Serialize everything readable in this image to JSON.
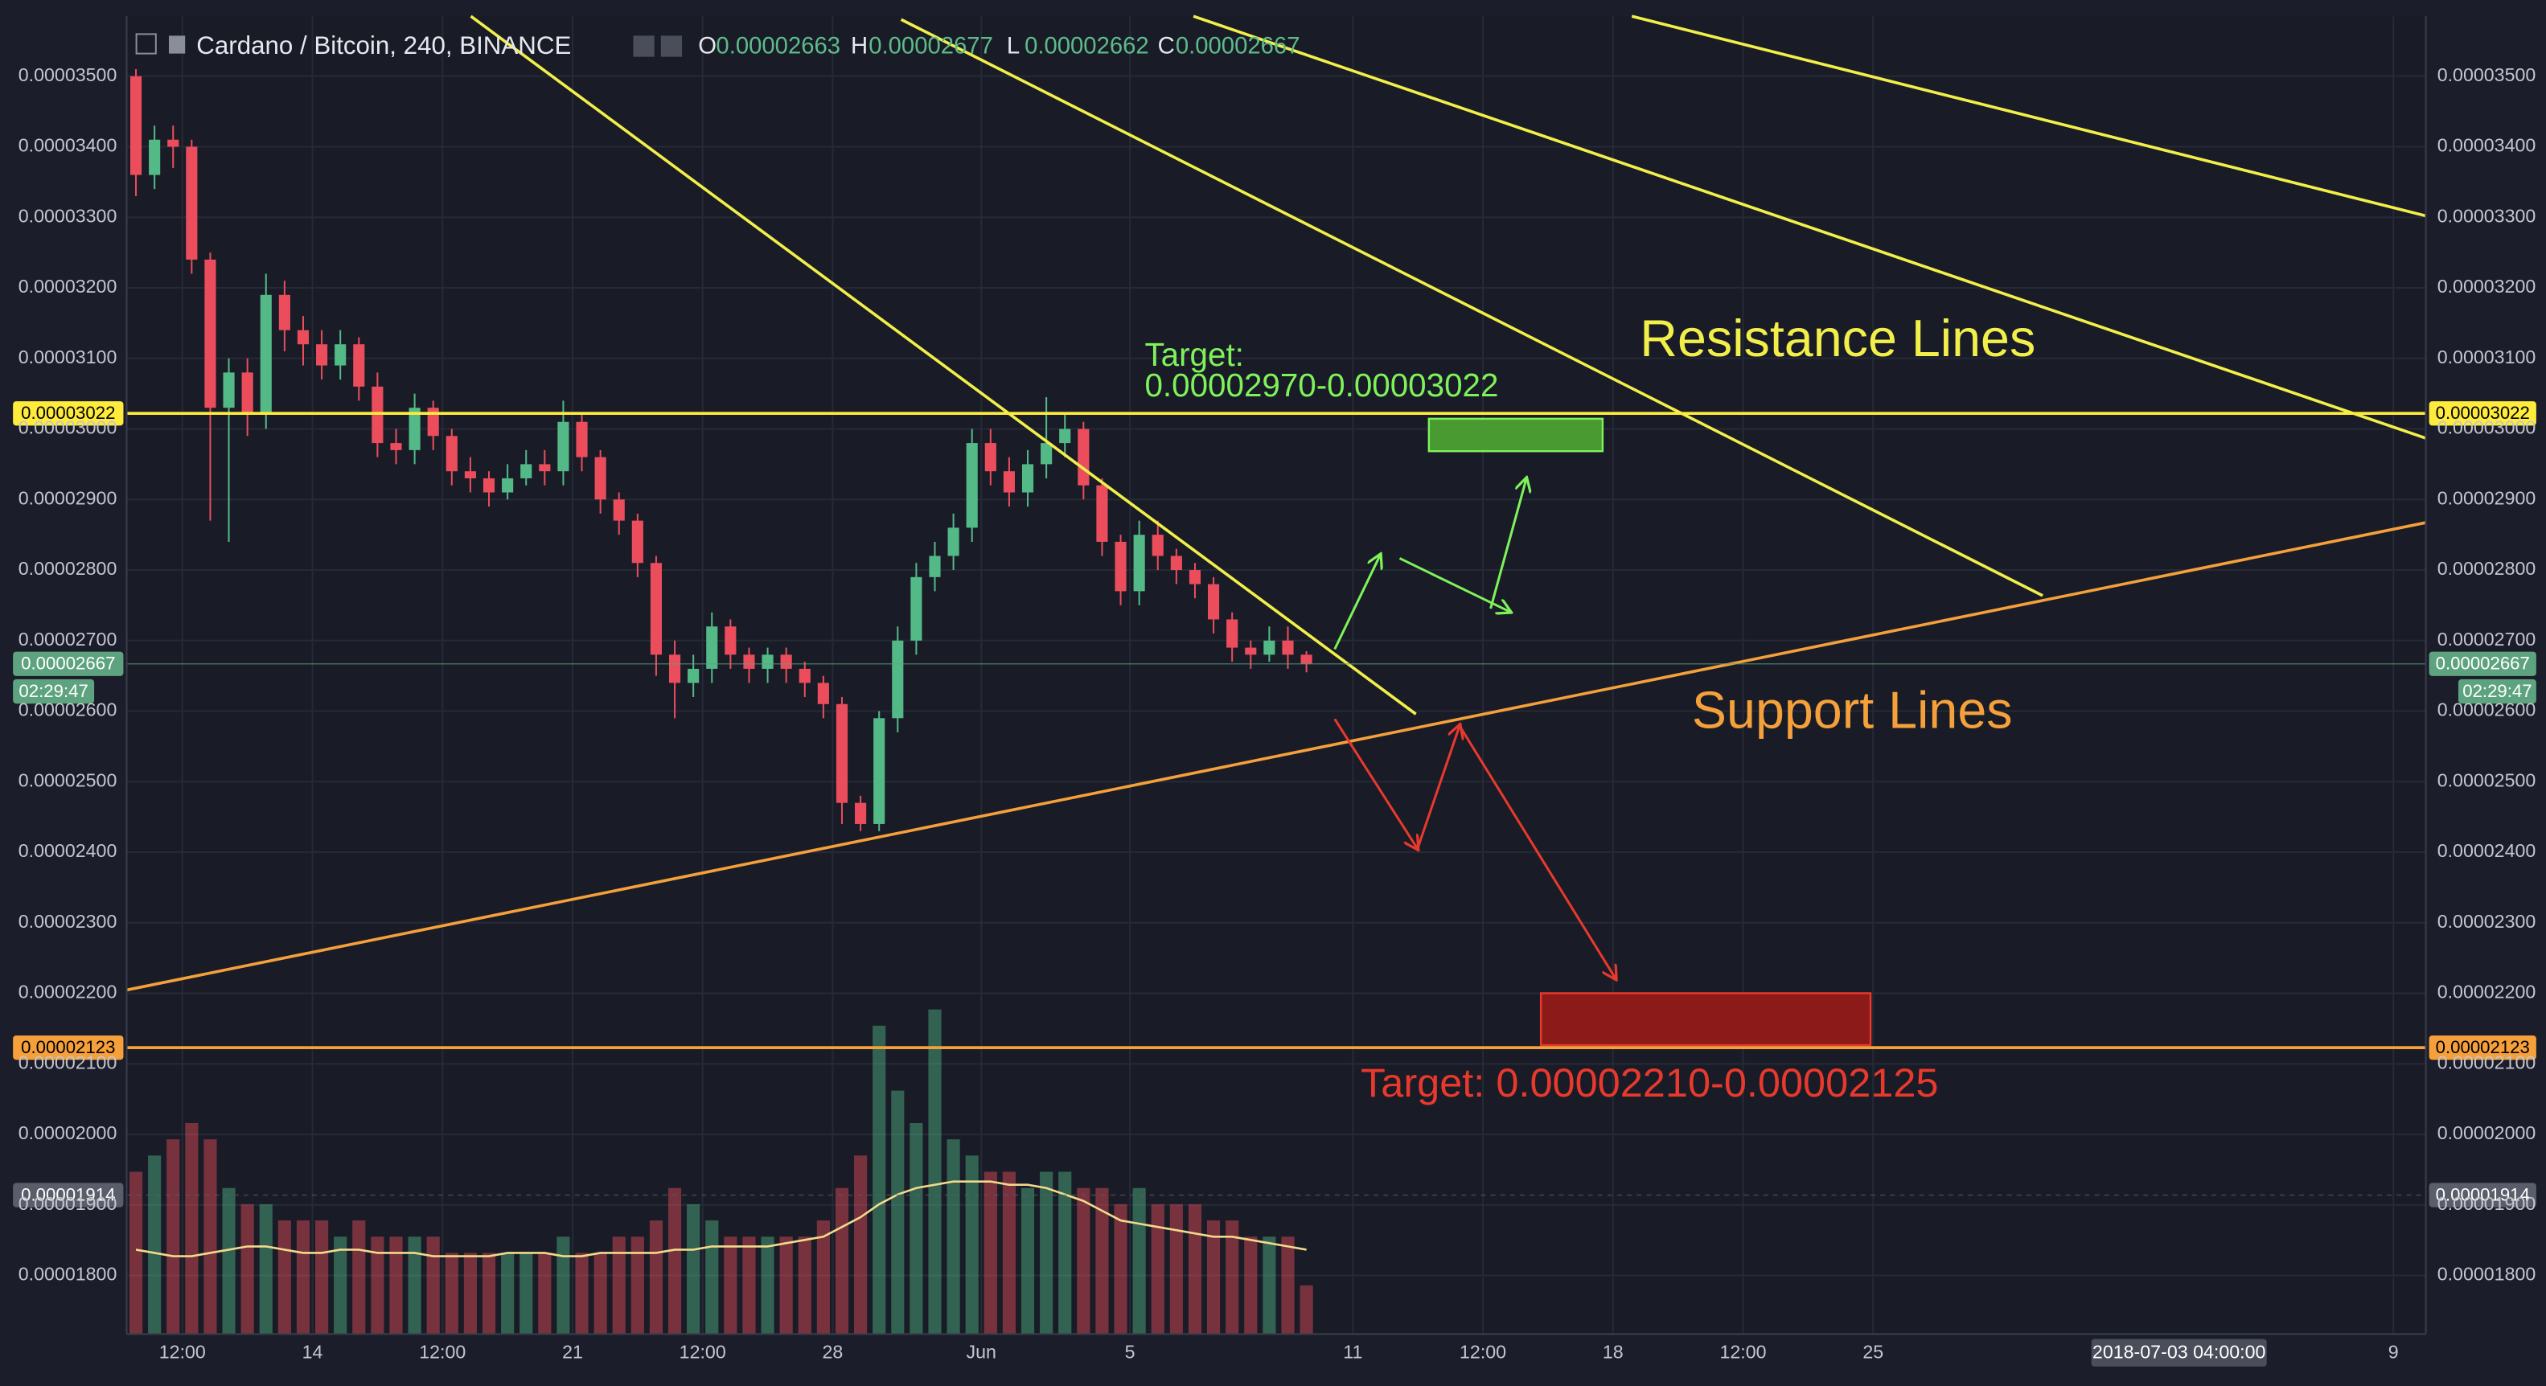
{
  "header": {
    "symbol": "Cardano / Bitcoin, 240, BINANCE",
    "ohlc": [
      {
        "key": "O",
        "value": 2.663e-05
      },
      {
        "key": "H",
        "value": 2.677e-05
      },
      {
        "key": "L",
        "value": 2.662e-05
      },
      {
        "key": "C",
        "value": 2.667e-05
      }
    ]
  },
  "chart_data": {
    "type": "candlestick",
    "x": [
      "2018-05-09T00:00",
      "2018-05-09T12:00",
      "2018-05-10T00:00",
      "2018-05-10T12:00",
      "2018-05-11T00:00",
      "2018-05-11T12:00",
      "2018-05-12T00:00",
      "2018-05-12T12:00",
      "2018-05-13T00:00",
      "2018-05-13T12:00",
      "2018-05-14T00:00",
      "2018-05-14T12:00",
      "2018-05-15T00:00",
      "2018-05-15T12:00",
      "2018-05-16T00:00",
      "2018-05-16T12:00",
      "2018-05-17T00:00",
      "2018-05-17T12:00",
      "2018-05-18T00:00",
      "2018-05-18T12:00",
      "2018-05-19T00:00",
      "2018-05-19T12:00",
      "2018-05-20T00:00",
      "2018-05-20T12:00",
      "2018-05-21T00:00",
      "2018-05-21T12:00",
      "2018-05-22T00:00",
      "2018-05-22T12:00",
      "2018-05-23T00:00",
      "2018-05-23T12:00",
      "2018-05-24T00:00",
      "2018-05-24T12:00",
      "2018-05-25T00:00",
      "2018-05-25T12:00",
      "2018-05-26T00:00",
      "2018-05-26T12:00",
      "2018-05-27T00:00",
      "2018-05-27T12:00",
      "2018-05-28T00:00",
      "2018-05-28T12:00",
      "2018-05-29T00:00",
      "2018-05-29T12:00",
      "2018-05-30T00:00",
      "2018-05-30T12:00",
      "2018-05-31T00:00",
      "2018-05-31T12:00",
      "2018-06-01T00:00",
      "2018-06-01T12:00",
      "2018-06-02T00:00",
      "2018-06-02T12:00",
      "2018-06-03T00:00",
      "2018-06-03T12:00",
      "2018-06-04T00:00",
      "2018-06-04T12:00",
      "2018-06-05T00:00",
      "2018-06-05T12:00",
      "2018-06-06T00:00",
      "2018-06-06T12:00",
      "2018-06-07T00:00",
      "2018-06-07T12:00",
      "2018-06-08T00:00",
      "2018-06-08T12:00",
      "2018-06-09T00:00",
      "2018-06-09T12:00"
    ],
    "open": [
      3.5e-05,
      3.36e-05,
      3.41e-05,
      3.4e-05,
      3.24e-05,
      3.03e-05,
      3.08e-05,
      3.02e-05,
      3.19e-05,
      3.14e-05,
      3.12e-05,
      3.09e-05,
      3.12e-05,
      3.06e-05,
      2.98e-05,
      2.97e-05,
      3.03e-05,
      2.99e-05,
      2.94e-05,
      2.93e-05,
      2.91e-05,
      2.93e-05,
      2.95e-05,
      2.94e-05,
      3.01e-05,
      2.96e-05,
      2.9e-05,
      2.87e-05,
      2.81e-05,
      2.68e-05,
      2.64e-05,
      2.66e-05,
      2.72e-05,
      2.68e-05,
      2.66e-05,
      2.68e-05,
      2.66e-05,
      2.64e-05,
      2.61e-05,
      2.47e-05,
      2.44e-05,
      2.59e-05,
      2.7e-05,
      2.79e-05,
      2.82e-05,
      2.86e-05,
      2.98e-05,
      2.94e-05,
      2.91e-05,
      2.95e-05,
      2.98e-05,
      3e-05,
      2.92e-05,
      2.84e-05,
      2.77e-05,
      2.85e-05,
      2.82e-05,
      2.8e-05,
      2.78e-05,
      2.73e-05,
      2.69e-05,
      2.68e-05,
      2.7e-05,
      2.68e-05
    ],
    "high": [
      3.51e-05,
      3.43e-05,
      3.43e-05,
      3.41e-05,
      3.25e-05,
      3.1e-05,
      3.1e-05,
      3.22e-05,
      3.21e-05,
      3.16e-05,
      3.14e-05,
      3.14e-05,
      3.13e-05,
      3.08e-05,
      3e-05,
      3.05e-05,
      3.04e-05,
      3e-05,
      2.96e-05,
      2.94e-05,
      2.95e-05,
      2.97e-05,
      2.97e-05,
      3.04e-05,
      3.02e-05,
      2.97e-05,
      2.91e-05,
      2.88e-05,
      2.82e-05,
      2.7e-05,
      2.68e-05,
      2.74e-05,
      2.73e-05,
      2.69e-05,
      2.69e-05,
      2.69e-05,
      2.67e-05,
      2.65e-05,
      2.62e-05,
      2.48e-05,
      2.6e-05,
      2.72e-05,
      2.81e-05,
      2.84e-05,
      2.88e-05,
      3e-05,
      3e-05,
      2.96e-05,
      2.97e-05,
      3.045e-05,
      3.02e-05,
      3.01e-05,
      2.93e-05,
      2.85e-05,
      2.87e-05,
      2.87e-05,
      2.83e-05,
      2.81e-05,
      2.79e-05,
      2.74e-05,
      2.7e-05,
      2.72e-05,
      2.72e-05,
      2.685e-05
    ],
    "low": [
      3.33e-05,
      3.34e-05,
      3.37e-05,
      3.22e-05,
      2.87e-05,
      2.84e-05,
      2.99e-05,
      3e-05,
      3.11e-05,
      3.09e-05,
      3.07e-05,
      3.07e-05,
      3.04e-05,
      2.96e-05,
      2.95e-05,
      2.95e-05,
      2.97e-05,
      2.92e-05,
      2.91e-05,
      2.89e-05,
      2.9e-05,
      2.92e-05,
      2.92e-05,
      2.92e-05,
      2.94e-05,
      2.88e-05,
      2.85e-05,
      2.79e-05,
      2.65e-05,
      2.59e-05,
      2.62e-05,
      2.64e-05,
      2.66e-05,
      2.64e-05,
      2.64e-05,
      2.64e-05,
      2.62e-05,
      2.59e-05,
      2.44e-05,
      2.43e-05,
      2.43e-05,
      2.57e-05,
      2.68e-05,
      2.77e-05,
      2.8e-05,
      2.84e-05,
      2.92e-05,
      2.89e-05,
      2.89e-05,
      2.93e-05,
      2.96e-05,
      2.9e-05,
      2.82e-05,
      2.75e-05,
      2.75e-05,
      2.8e-05,
      2.78e-05,
      2.76e-05,
      2.71e-05,
      2.67e-05,
      2.66e-05,
      2.67e-05,
      2.66e-05,
      2.655e-05
    ],
    "close": [
      3.36e-05,
      3.41e-05,
      3.4e-05,
      3.24e-05,
      3.03e-05,
      3.08e-05,
      3.02e-05,
      3.19e-05,
      3.14e-05,
      3.12e-05,
      3.09e-05,
      3.12e-05,
      3.06e-05,
      2.98e-05,
      2.97e-05,
      3.03e-05,
      2.99e-05,
      2.94e-05,
      2.93e-05,
      2.91e-05,
      2.93e-05,
      2.95e-05,
      2.94e-05,
      3.01e-05,
      2.96e-05,
      2.9e-05,
      2.87e-05,
      2.81e-05,
      2.68e-05,
      2.64e-05,
      2.66e-05,
      2.72e-05,
      2.68e-05,
      2.66e-05,
      2.68e-05,
      2.66e-05,
      2.64e-05,
      2.61e-05,
      2.47e-05,
      2.44e-05,
      2.59e-05,
      2.7e-05,
      2.79e-05,
      2.82e-05,
      2.86e-05,
      2.98e-05,
      2.94e-05,
      2.91e-05,
      2.95e-05,
      2.98e-05,
      3e-05,
      2.92e-05,
      2.84e-05,
      2.77e-05,
      2.85e-05,
      2.82e-05,
      2.8e-05,
      2.78e-05,
      2.73e-05,
      2.69e-05,
      2.68e-05,
      2.7e-05,
      2.68e-05,
      2.667e-05
    ],
    "up_color": "#53b987",
    "down_color": "#eb4d5c",
    "volume": [
      50,
      55,
      60,
      65,
      60,
      45,
      40,
      40,
      35,
      35,
      35,
      30,
      35,
      30,
      30,
      30,
      30,
      25,
      25,
      25,
      25,
      25,
      25,
      30,
      25,
      25,
      30,
      30,
      35,
      45,
      40,
      35,
      30,
      30,
      30,
      30,
      30,
      35,
      45,
      55,
      95,
      75,
      65,
      100,
      60,
      55,
      50,
      50,
      45,
      50,
      50,
      45,
      45,
      40,
      45,
      40,
      40,
      40,
      35,
      35,
      30,
      30,
      30,
      15
    ],
    "volume_ma": [
      26,
      25,
      24,
      24,
      25,
      26,
      27,
      27,
      26,
      25,
      25,
      26,
      26,
      25,
      25,
      25,
      24,
      24,
      24,
      24,
      25,
      25,
      25,
      24,
      24,
      25,
      25,
      25,
      25,
      26,
      26,
      27,
      27,
      27,
      27,
      28,
      29,
      30,
      33,
      36,
      40,
      43,
      45,
      46,
      47,
      47,
      47,
      46,
      46,
      45,
      43,
      41,
      38,
      35,
      34,
      33,
      32,
      31,
      30,
      30,
      29,
      28,
      27,
      26
    ],
    "ma_color": "#f3d98b",
    "xlim": [
      "2018-05-09T00:00",
      "2018-07-09T21:00"
    ],
    "xticks": [
      {
        "value": "2018-05-10T12:00",
        "label": "12:00"
      },
      {
        "value": "2018-05-14T00:00",
        "label": "14"
      },
      {
        "value": "2018-05-17T12:00",
        "label": "12:00"
      },
      {
        "value": "2018-05-21T00:00",
        "label": "21"
      },
      {
        "value": "2018-05-24T12:00",
        "label": "12:00"
      },
      {
        "value": "2018-05-28T00:00",
        "label": "28"
      },
      {
        "value": "2018-06-01T00:00",
        "label": "Jun"
      },
      {
        "value": "2018-06-05T00:00",
        "label": "5"
      },
      {
        "value": "2018-06-11T00:00",
        "label": "11"
      },
      {
        "value": "2018-06-14T12:00",
        "label": "12:00"
      },
      {
        "value": "2018-06-18T00:00",
        "label": "18"
      },
      {
        "value": "2018-06-21T12:00",
        "label": "12:00"
      },
      {
        "value": "2018-06-25T00:00",
        "label": "25"
      },
      {
        "value": "2018-07-09T00:00",
        "label": "9"
      }
    ],
    "ylim": [
      1.717e-05,
      3.585e-05
    ],
    "yticks": [
      {
        "value": 1.8e-05,
        "label": "0.00001800"
      },
      {
        "value": 1.9e-05,
        "label": "0.00001900"
      },
      {
        "value": 2e-05,
        "label": "0.00002000"
      },
      {
        "value": 2.1e-05,
        "label": "0.00002100"
      },
      {
        "value": 2.2e-05,
        "label": "0.00002200"
      },
      {
        "value": 2.3e-05,
        "label": "0.00002300"
      },
      {
        "value": 2.4e-05,
        "label": "0.00002400"
      },
      {
        "value": 2.5e-05,
        "label": "0.00002500"
      },
      {
        "value": 2.6e-05,
        "label": "0.00002600"
      },
      {
        "value": 2.7e-05,
        "label": "0.00002700"
      },
      {
        "value": 2.8e-05,
        "label": "0.00002800"
      },
      {
        "value": 2.9e-05,
        "label": "0.00002900"
      },
      {
        "value": 3e-05,
        "label": "0.00003000"
      },
      {
        "value": 3.1e-05,
        "label": "0.00003100"
      },
      {
        "value": 3.2e-05,
        "label": "0.00003200"
      },
      {
        "value": 3.3e-05,
        "label": "0.00003300"
      },
      {
        "value": 3.4e-05,
        "label": "0.00003400"
      },
      {
        "value": 3.5e-05,
        "label": "0.00003500"
      }
    ],
    "grid": true,
    "price_lines": [
      {
        "value": 3.022e-05,
        "color": "#ffeb3b",
        "text_color": "#000000"
      },
      {
        "value": 2.667e-05,
        "color": "#5ea37f",
        "text_color": "#ffffff"
      },
      {
        "value": 2.123e-05,
        "color": "#f5a03a",
        "text_color": "#000000"
      },
      {
        "value": 1.914e-05,
        "color": "#5a5e6a",
        "text_color": "#ffffff"
      }
    ],
    "countdown": "02:29:47",
    "crosshair_label": "2018-07-03 04:00:00",
    "annotations": [
      {
        "text": "Target:",
        "color": "#7ff25a"
      },
      {
        "text": "0.00002970-0.00003022",
        "color": "#7ff25a"
      },
      {
        "text": "Resistance Lines",
        "color": "#f2ef4a"
      },
      {
        "text": "Support Lines",
        "color": "#f5a03a"
      },
      {
        "text": "Target: 0.00002210-0.00002125",
        "color": "#e8392c"
      }
    ]
  }
}
